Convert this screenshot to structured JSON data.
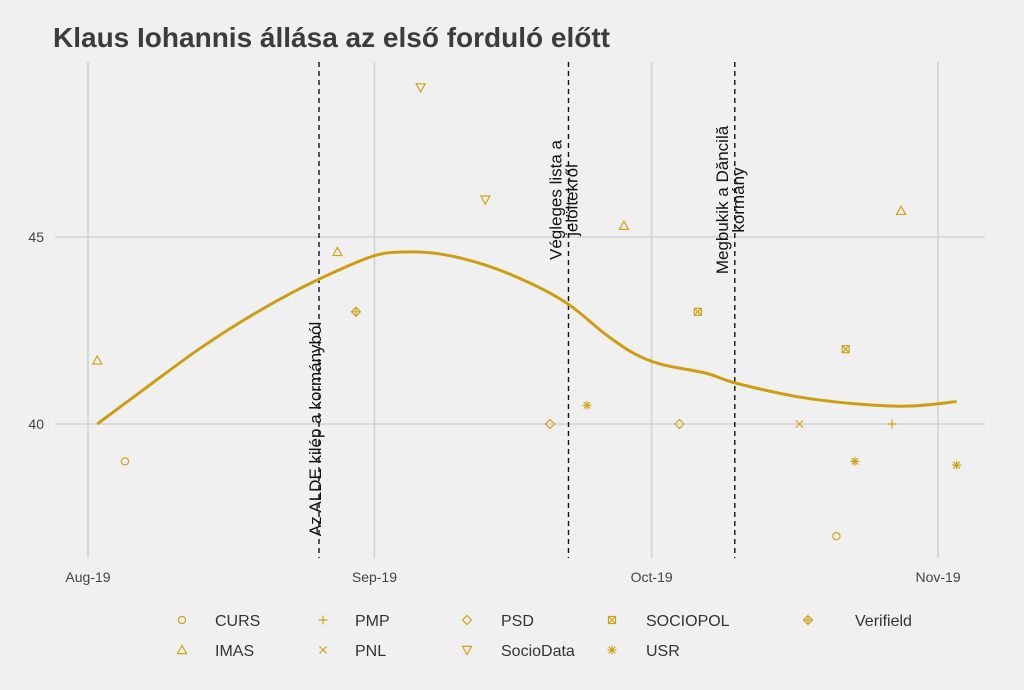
{
  "chart_data": {
    "type": "scatter",
    "title": "Klaus Iohannis állása az első forduló előtt",
    "xlabel": "",
    "ylabel": "",
    "xlim": [
      "2019-07-31",
      "2019-11-06"
    ],
    "ylim": [
      36.4,
      49.7
    ],
    "grid": true,
    "x_ticks": [
      {
        "date": "2019-08-01",
        "label": "Aug-19"
      },
      {
        "date": "2019-09-01",
        "label": "Sep-19"
      },
      {
        "date": "2019-10-01",
        "label": "Oct-19"
      },
      {
        "date": "2019-11-01",
        "label": "Nov-19"
      }
    ],
    "y_ticks": [
      {
        "value": 40,
        "label": "40"
      },
      {
        "value": 45,
        "label": "45"
      }
    ],
    "colors": {
      "accent": "#cfa21a",
      "trend": "#cc9e14",
      "grid": "#d2d2d2",
      "background": "#f0f0f0"
    },
    "legend_position": "bottom",
    "legend": [
      {
        "name": "CURS",
        "shape": "circle"
      },
      {
        "name": "PMP",
        "shape": "plus"
      },
      {
        "name": "PSD",
        "shape": "diamond"
      },
      {
        "name": "SOCIOPOL",
        "shape": "square-x"
      },
      {
        "name": "Verifield",
        "shape": "diamond-plus"
      },
      {
        "name": "IMAS",
        "shape": "triangle"
      },
      {
        "name": "PNL",
        "shape": "cross"
      },
      {
        "name": "SocioData",
        "shape": "triangle-down"
      },
      {
        "name": "USR",
        "shape": "asterisk"
      }
    ],
    "points": [
      {
        "pollster": "IMAS",
        "date": "2019-08-02",
        "value": 41.7
      },
      {
        "pollster": "CURS",
        "date": "2019-08-05",
        "value": 39.0
      },
      {
        "pollster": "IMAS",
        "date": "2019-08-28",
        "value": 44.6
      },
      {
        "pollster": "Verifield",
        "date": "2019-08-30",
        "value": 43.0
      },
      {
        "pollster": "SocioData",
        "date": "2019-09-06",
        "value": 49.0
      },
      {
        "pollster": "SocioData",
        "date": "2019-09-13",
        "value": 46.0
      },
      {
        "pollster": "PSD",
        "date": "2019-09-20",
        "value": 40.0
      },
      {
        "pollster": "USR",
        "date": "2019-09-24",
        "value": 40.5
      },
      {
        "pollster": "IMAS",
        "date": "2019-09-28",
        "value": 45.3
      },
      {
        "pollster": "PSD",
        "date": "2019-10-04",
        "value": 40.0
      },
      {
        "pollster": "SOCIOPOL",
        "date": "2019-10-06",
        "value": 43.0
      },
      {
        "pollster": "PNL",
        "date": "2019-10-17",
        "value": 40.0
      },
      {
        "pollster": "CURS",
        "date": "2019-10-21",
        "value": 37.0
      },
      {
        "pollster": "SOCIOPOL",
        "date": "2019-10-22",
        "value": 42.0
      },
      {
        "pollster": "USR",
        "date": "2019-10-23",
        "value": 39.0
      },
      {
        "pollster": "PMP",
        "date": "2019-10-27",
        "value": 40.0
      },
      {
        "pollster": "IMAS",
        "date": "2019-10-28",
        "value": 45.7
      },
      {
        "pollster": "USR",
        "date": "2019-11-03",
        "value": 38.9
      }
    ],
    "trend": [
      {
        "date": "2019-08-02",
        "value": 40.0
      },
      {
        "date": "2019-08-08",
        "value": 41.1
      },
      {
        "date": "2019-08-13",
        "value": 42.0
      },
      {
        "date": "2019-08-18",
        "value": 42.8
      },
      {
        "date": "2019-08-23",
        "value": 43.5
      },
      {
        "date": "2019-08-28",
        "value": 44.1
      },
      {
        "date": "2019-09-01",
        "value": 44.5
      },
      {
        "date": "2019-09-04",
        "value": 44.6
      },
      {
        "date": "2019-09-08",
        "value": 44.55
      },
      {
        "date": "2019-09-13",
        "value": 44.25
      },
      {
        "date": "2019-09-18",
        "value": 43.75
      },
      {
        "date": "2019-09-22",
        "value": 43.2
      },
      {
        "date": "2019-09-26",
        "value": 42.4
      },
      {
        "date": "2019-09-29",
        "value": 41.9
      },
      {
        "date": "2019-10-02",
        "value": 41.6
      },
      {
        "date": "2019-10-07",
        "value": 41.35
      },
      {
        "date": "2019-10-10",
        "value": 41.1
      },
      {
        "date": "2019-10-17",
        "value": 40.72
      },
      {
        "date": "2019-10-24",
        "value": 40.52
      },
      {
        "date": "2019-10-29",
        "value": 40.48
      },
      {
        "date": "2019-11-03",
        "value": 40.6
      }
    ],
    "events": [
      {
        "date": "2019-08-26",
        "lines": [
          "Az ALDE kilép a kormányból"
        ]
      },
      {
        "date": "2019-09-22",
        "lines": [
          "Végleges lista a",
          "jelöltekről"
        ]
      },
      {
        "date": "2019-10-10",
        "lines": [
          "Megbukik a Dăncilă",
          "kormány"
        ]
      }
    ]
  }
}
